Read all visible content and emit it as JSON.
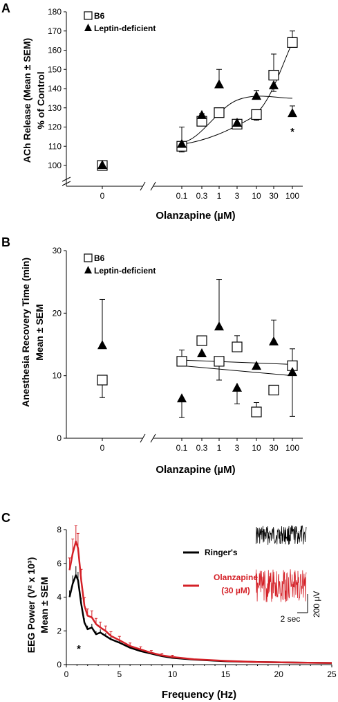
{
  "chart_data": [
    {
      "panel": "A",
      "type": "scatter",
      "ylabel": "ACh Release (Mean ± SEM)",
      "ylabel2": "% of Control",
      "xlabel": "Olanzapine (µM)",
      "ylim": [
        100,
        180
      ],
      "yticks": [
        "100",
        "110",
        "120",
        "130",
        "140",
        "150",
        "160",
        "170",
        "180"
      ],
      "xticks": [
        "0",
        "0.1",
        "0.3",
        "1",
        "3",
        "10",
        "30",
        "100"
      ],
      "legend": [
        "B6",
        "Leptin-deficient"
      ],
      "annotation": "*",
      "series": [
        {
          "name": "B6",
          "marker": "open-square",
          "x": [
            0,
            0.1,
            0.3,
            1,
            3,
            10,
            30,
            100
          ],
          "y": [
            100,
            110,
            123,
            127.5,
            121.5,
            126.5,
            147,
            164
          ],
          "err": [
            0,
            3,
            4,
            2,
            2,
            3,
            11,
            6
          ]
        },
        {
          "name": "Leptin-deficient",
          "marker": "filled-triangle",
          "x": [
            0,
            0.1,
            0.3,
            1,
            3,
            10,
            30,
            100
          ],
          "y": [
            100,
            111,
            126,
            142,
            122,
            136,
            141.5,
            127
          ],
          "err": [
            0,
            9,
            5,
            8,
            2,
            3,
            3,
            4
          ]
        }
      ]
    },
    {
      "panel": "B",
      "type": "scatter",
      "ylabel": "Anesthesia Recovery Time (min)",
      "ylabel2": "Mean ± SEM",
      "xlabel": "Olanzapine (µM)",
      "ylim": [
        0,
        30
      ],
      "yticks": [
        "0",
        "10",
        "20",
        "30"
      ],
      "xticks": [
        "0",
        "0.1",
        "0.3",
        "1",
        "3",
        "10",
        "30",
        "100"
      ],
      "legend": [
        "B6",
        "Leptin-deficient"
      ],
      "series": [
        {
          "name": "B6",
          "marker": "open-square",
          "x": [
            0,
            0.1,
            0.3,
            1,
            3,
            10,
            30,
            100
          ],
          "y": [
            9.3,
            12.3,
            15.6,
            12.3,
            14.6,
            4.2,
            7.7,
            11.6
          ],
          "err": [
            2.8,
            1.8,
            0,
            3,
            1.8,
            1.5,
            0.5,
            2.7
          ]
        },
        {
          "name": "Leptin-deficient",
          "marker": "filled-triangle",
          "x": [
            0,
            0.1,
            0.3,
            1,
            3,
            10,
            30,
            100
          ],
          "y": [
            14.8,
            6.3,
            13.5,
            17.8,
            8,
            11.5,
            15.4,
            10.5
          ],
          "err": [
            7.4,
            3,
            0,
            7.6,
            2.5,
            0,
            3.5,
            7
          ]
        }
      ]
    },
    {
      "panel": "C",
      "type": "line",
      "ylabel": "EEG Power (V² x 10³)",
      "ylabel2": "Mean ± SEM",
      "xlabel": "Frequency (Hz)",
      "xlim": [
        0,
        25
      ],
      "ylim": [
        0,
        8
      ],
      "xticks": [
        "0",
        "5",
        "10",
        "15",
        "20",
        "25"
      ],
      "yticks": [
        "0",
        "2",
        "4",
        "6",
        "8"
      ],
      "annotation": "*",
      "series": [
        {
          "name": "Ringer's",
          "color": "#000000",
          "x": [
            0.3,
            0.6,
            0.9,
            1.1,
            1.4,
            1.7,
            2.0,
            2.4,
            2.8,
            3.2,
            3.7,
            4.2,
            5,
            6,
            7,
            8,
            9,
            10,
            12,
            15,
            18,
            22,
            25
          ],
          "y": [
            4.0,
            4.8,
            5.3,
            5.0,
            3.6,
            2.5,
            2.1,
            2.2,
            1.8,
            1.9,
            1.7,
            1.5,
            1.3,
            1.0,
            0.8,
            0.65,
            0.5,
            0.4,
            0.3,
            0.2,
            0.15,
            0.12,
            0.1
          ]
        },
        {
          "name": "Olanzapine (30 µM)",
          "color": "#d42027",
          "x": [
            0.3,
            0.6,
            0.9,
            1.1,
            1.4,
            1.7,
            2.0,
            2.4,
            2.8,
            3.2,
            3.7,
            4.2,
            5,
            6,
            7,
            8,
            9,
            10,
            12,
            15,
            18,
            22,
            25
          ],
          "y": [
            5.6,
            6.6,
            7.3,
            6.9,
            5.0,
            3.5,
            2.9,
            2.8,
            2.4,
            2.2,
            2.0,
            1.7,
            1.45,
            1.1,
            0.9,
            0.7,
            0.55,
            0.45,
            0.32,
            0.22,
            0.15,
            0.12,
            0.1
          ]
        }
      ],
      "inset": {
        "legend": [
          "Ringer's",
          "Olanzapine",
          "(30 µM)"
        ],
        "scale_y": "200 µV",
        "scale_x": "2 sec"
      }
    }
  ],
  "panel_letters": [
    "A",
    "B",
    "C"
  ]
}
